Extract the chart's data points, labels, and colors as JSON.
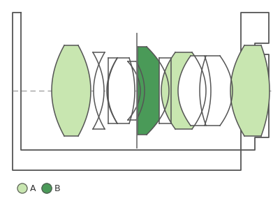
{
  "light_green": "#c8e6b0",
  "dark_green": "#4a9a58",
  "outline_color": "#555555",
  "dashed_line_color": "#999999",
  "separator_color": "#666666",
  "background": "#ffffff",
  "legend_A": "A",
  "legend_B": "B",
  "lw": 1.1
}
